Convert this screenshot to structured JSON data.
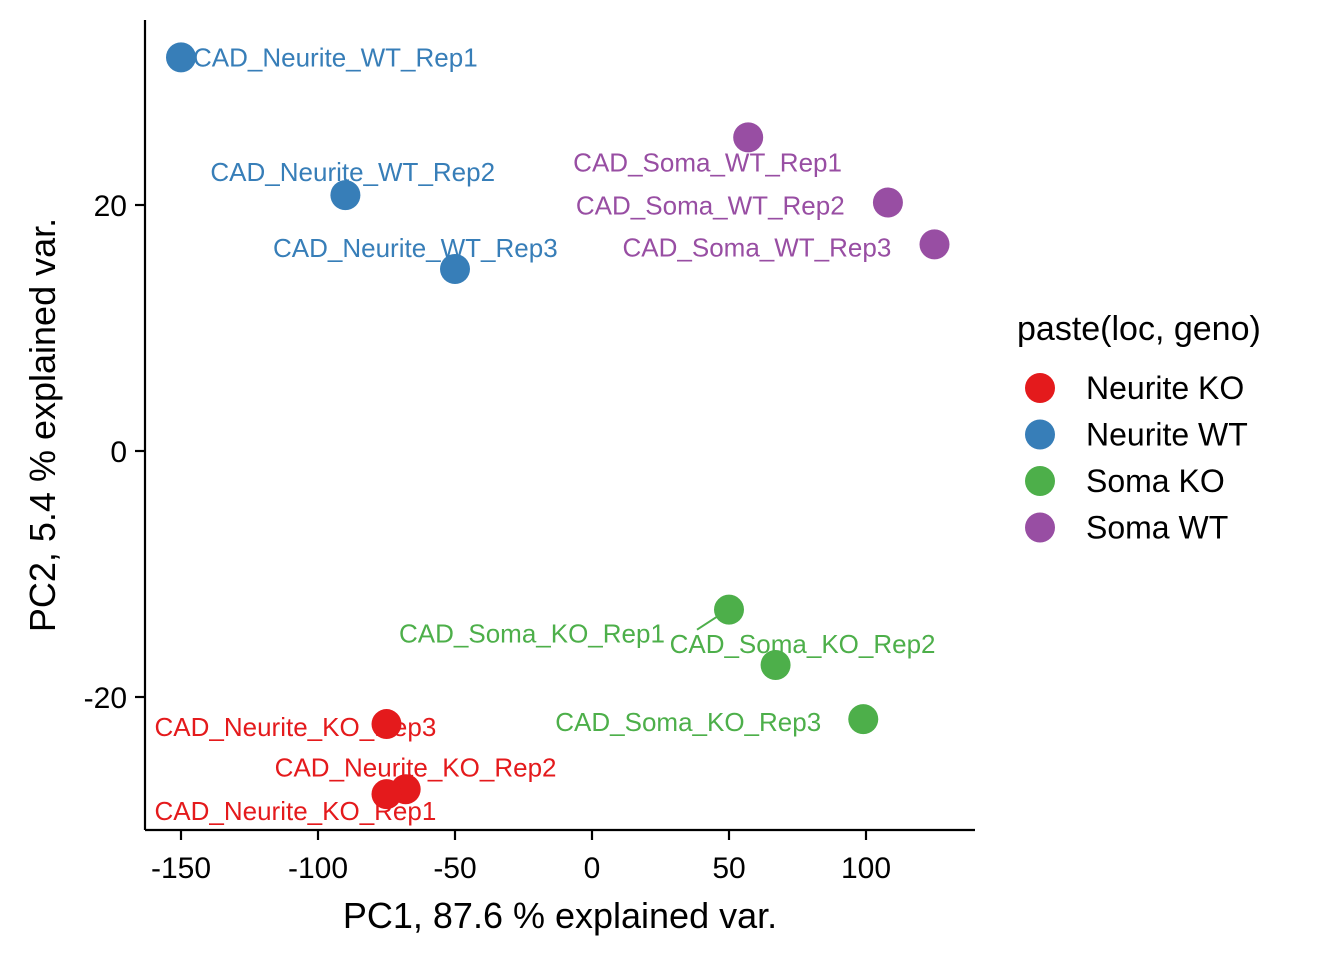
{
  "chart_data": {
    "type": "scatter",
    "xlabel": "PC1, 87.6 % explained var.",
    "ylabel": "PC2, 5.4 % explained var.",
    "xlim": [
      -160,
      140
    ],
    "ylim": [
      -30.5,
      35
    ],
    "x_ticks": [
      -150,
      -100,
      -50,
      0,
      50,
      100
    ],
    "y_ticks": [
      -20,
      0,
      20
    ],
    "legend": {
      "title": "paste(loc, geno)",
      "position": "right",
      "entries": [
        {
          "name": "Neurite KO",
          "color": "#E41A1C"
        },
        {
          "name": "Neurite WT",
          "color": "#377EB8"
        },
        {
          "name": "Soma KO",
          "color": "#4DAF4A"
        },
        {
          "name": "Soma WT",
          "color": "#984EA3"
        }
      ]
    },
    "points": [
      {
        "label": "CAD_Neurite_WT_Rep1",
        "group": "Neurite WT",
        "x": -150,
        "y": 32.0
      },
      {
        "label": "CAD_Neurite_WT_Rep2",
        "group": "Neurite WT",
        "x": -90,
        "y": 20.8
      },
      {
        "label": "CAD_Neurite_WT_Rep3",
        "group": "Neurite WT",
        "x": -50,
        "y": 14.8
      },
      {
        "label": "CAD_Soma_WT_Rep1",
        "group": "Soma WT",
        "x": 57,
        "y": 25.5
      },
      {
        "label": "CAD_Soma_WT_Rep2",
        "group": "Soma WT",
        "x": 108,
        "y": 20.2
      },
      {
        "label": "CAD_Soma_WT_Rep3",
        "group": "Soma WT",
        "x": 125,
        "y": 16.8
      },
      {
        "label": "CAD_Soma_KO_Rep1",
        "group": "Soma KO",
        "x": 50,
        "y": -12.9
      },
      {
        "label": "CAD_Soma_KO_Rep2",
        "group": "Soma KO",
        "x": 67,
        "y": -17.4
      },
      {
        "label": "CAD_Soma_KO_Rep3",
        "group": "Soma KO",
        "x": 99,
        "y": -21.8
      },
      {
        "label": "CAD_Neurite_KO_Rep3",
        "group": "Neurite KO",
        "x": -75,
        "y": -22.2
      },
      {
        "label": "CAD_Neurite_KO_Rep2",
        "group": "Neurite KO",
        "x": -68,
        "y": -27.5
      },
      {
        "label": "CAD_Neurite_KO_Rep1",
        "group": "Neurite KO",
        "x": -75,
        "y": -27.9
      }
    ]
  }
}
